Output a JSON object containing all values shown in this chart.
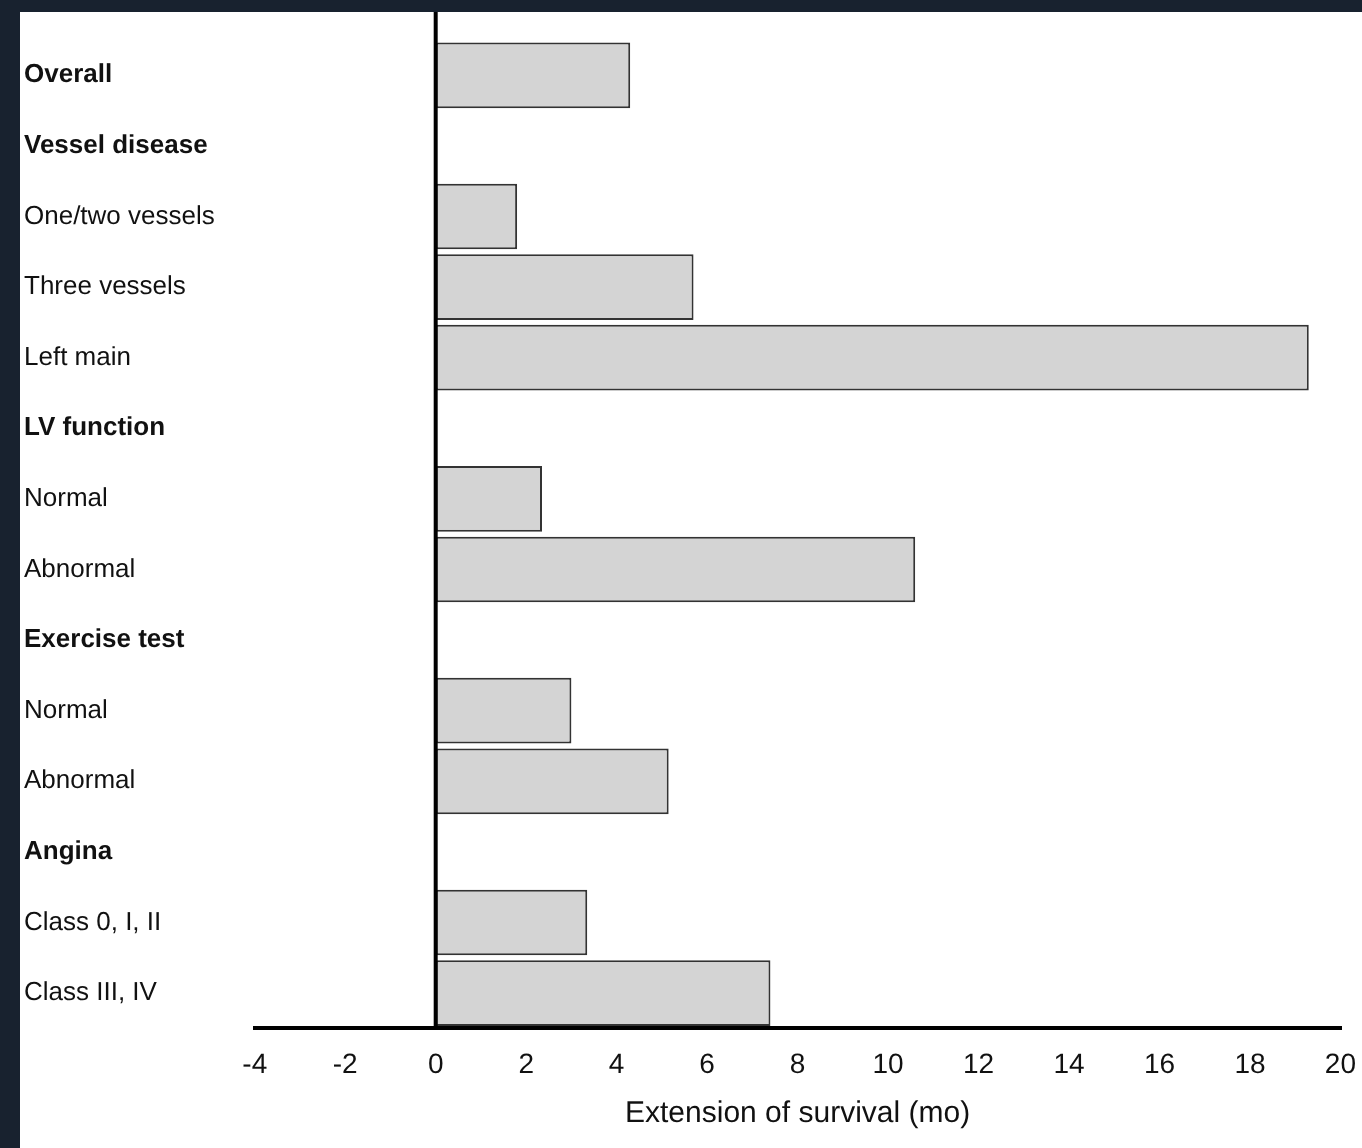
{
  "chart_data": {
    "type": "bar",
    "orientation": "horizontal",
    "xlabel": "Extension of survival (mo)",
    "categories": [
      "Overall",
      "Vessel disease",
      "One/two vessels",
      "Three vessels",
      "Left main",
      "LV function",
      "Normal",
      "Abnormal",
      "Exercise test",
      "Normal",
      "Abnormal",
      "Angina",
      "Class 0, I, II",
      "Class III, IV"
    ],
    "values": [
      4.3,
      null,
      1.8,
      5.7,
      19.3,
      null,
      2.35,
      10.6,
      null,
      3.0,
      5.15,
      null,
      3.35,
      7.4
    ],
    "color": "#d4d4d4",
    "xlim": [
      -4,
      20
    ],
    "xticks": [
      -4,
      -2,
      0,
      2,
      4,
      6,
      8,
      10,
      12,
      14,
      16,
      18,
      20
    ],
    "ref_lines": [
      {
        "axis": "x",
        "value": 0,
        "color": "#000000"
      }
    ],
    "grid": false,
    "legend": false
  }
}
